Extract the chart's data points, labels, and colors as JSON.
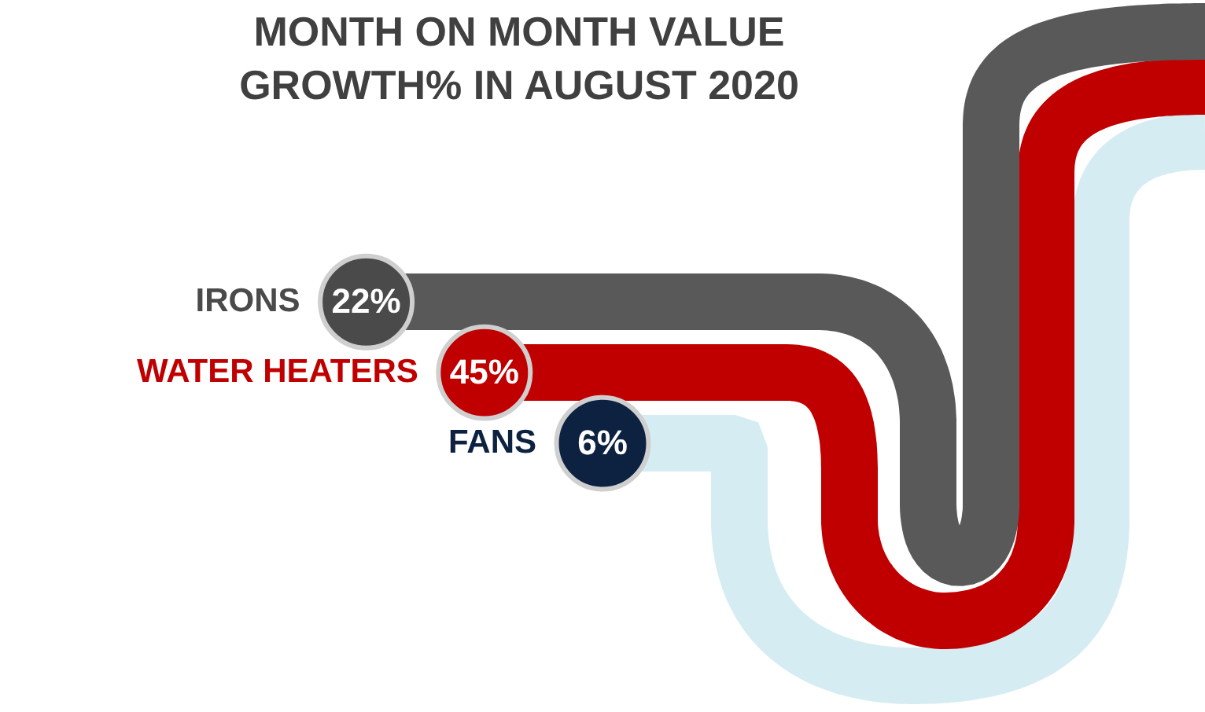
{
  "chart_data": {
    "type": "other",
    "title": "MONTH ON MONTH VALUE\nGROWTH% IN AUGUST 2020",
    "categories": [
      "IRONS",
      "WATER HEATERS",
      "FANS"
    ],
    "values": [
      22,
      45,
      6
    ],
    "value_labels": [
      "22%",
      "45%",
      "6%"
    ],
    "colors": [
      "#4a4a4a",
      "#c00000",
      "#0d2240"
    ]
  }
}
